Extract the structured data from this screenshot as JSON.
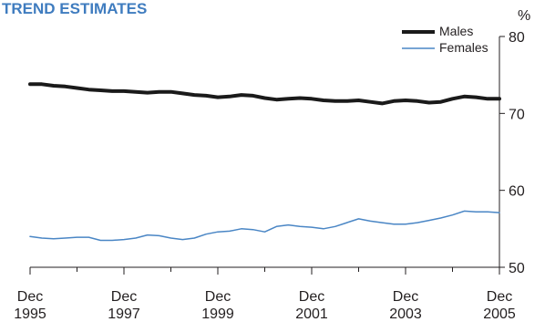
{
  "chart_data": {
    "type": "line",
    "title": "TREND ESTIMATES",
    "ylabel": "%",
    "ylim": [
      50,
      80
    ],
    "yticks": [
      50,
      60,
      70,
      80
    ],
    "x_start": "Dec 1995",
    "x_end": "Dec 2005",
    "x_tick_labels": [
      {
        "month": "Dec",
        "year": "1995"
      },
      {
        "month": "Dec",
        "year": "1997"
      },
      {
        "month": "Dec",
        "year": "1999"
      },
      {
        "month": "Dec",
        "year": "2001"
      },
      {
        "month": "Dec",
        "year": "2003"
      },
      {
        "month": "Dec",
        "year": "2005"
      }
    ],
    "grid": false,
    "legend_position": "top-right",
    "x": [
      "Dec 1995",
      "Mar 1996",
      "Jun 1996",
      "Sep 1996",
      "Dec 1996",
      "Mar 1997",
      "Jun 1997",
      "Sep 1997",
      "Dec 1997",
      "Mar 1998",
      "Jun 1998",
      "Sep 1998",
      "Dec 1998",
      "Mar 1999",
      "Jun 1999",
      "Sep 1999",
      "Dec 1999",
      "Mar 2000",
      "Jun 2000",
      "Sep 2000",
      "Dec 2000",
      "Mar 2001",
      "Jun 2001",
      "Sep 2001",
      "Dec 2001",
      "Mar 2002",
      "Jun 2002",
      "Sep 2002",
      "Dec 2002",
      "Mar 2003",
      "Jun 2003",
      "Sep 2003",
      "Dec 2003",
      "Mar 2004",
      "Jun 2004",
      "Sep 2004",
      "Dec 2004",
      "Mar 2005",
      "Jun 2005",
      "Sep 2005",
      "Dec 2005"
    ],
    "series": [
      {
        "name": "Males",
        "color": "#1a1a1a",
        "values": [
          73.8,
          73.8,
          73.6,
          73.5,
          73.3,
          73.1,
          73.0,
          72.9,
          72.9,
          72.8,
          72.7,
          72.8,
          72.8,
          72.6,
          72.4,
          72.3,
          72.1,
          72.2,
          72.4,
          72.3,
          72.0,
          71.8,
          71.9,
          72.0,
          71.9,
          71.7,
          71.6,
          71.6,
          71.7,
          71.5,
          71.3,
          71.6,
          71.7,
          71.6,
          71.4,
          71.5,
          71.9,
          72.2,
          72.1,
          71.9,
          71.9
        ]
      },
      {
        "name": "Females",
        "color": "#4a86c5",
        "values": [
          54.0,
          53.8,
          53.7,
          53.8,
          53.9,
          53.9,
          53.5,
          53.5,
          53.6,
          53.8,
          54.2,
          54.1,
          53.8,
          53.6,
          53.8,
          54.3,
          54.6,
          54.7,
          55.0,
          54.9,
          54.6,
          55.3,
          55.5,
          55.3,
          55.2,
          55.0,
          55.3,
          55.8,
          56.3,
          56.0,
          55.8,
          55.6,
          55.6,
          55.8,
          56.1,
          56.4,
          56.8,
          57.3,
          57.2,
          57.2,
          57.1
        ]
      }
    ]
  }
}
